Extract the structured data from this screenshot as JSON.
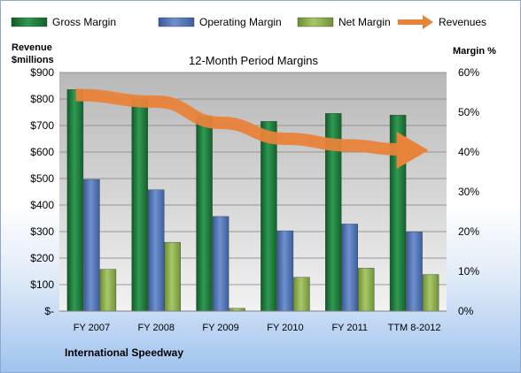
{
  "chart_data": {
    "type": "bar",
    "title": "12-Month Period Margins",
    "categories": [
      "FY 2007",
      "FY 2008",
      "FY 2009",
      "FY 2010",
      "FY 2011",
      "TTM 8-2012"
    ],
    "series": [
      {
        "name": "Gross Margin",
        "axis": "right",
        "values": [
          55.7,
          53.3,
          49.0,
          47.7,
          49.7,
          49.3
        ],
        "color": "#1e7a3c"
      },
      {
        "name": "Operating Margin",
        "axis": "right",
        "values": [
          33.1,
          30.5,
          23.8,
          20.2,
          21.9,
          19.9
        ],
        "color": "#4f72b8"
      },
      {
        "name": "Net Margin",
        "axis": "right",
        "values": [
          10.5,
          17.3,
          0.7,
          8.5,
          10.8,
          9.2
        ],
        "color": "#8fb04a"
      },
      {
        "name": "Revenues",
        "type": "line",
        "axis": "left",
        "values": [
          815,
          790,
          710,
          650,
          625,
          610
        ],
        "color": "#e8833a"
      }
    ],
    "y_left": {
      "label_line1": "Revenue",
      "label_line2": "$millions",
      "min": 0,
      "max": 900,
      "ticks": [
        "$-",
        "$100",
        "$200",
        "$300",
        "$400",
        "$500",
        "$600",
        "$700",
        "$800",
        "$900"
      ]
    },
    "y_right": {
      "label": "Margin %",
      "min": 0,
      "max": 60,
      "ticks": [
        "0%",
        "10%",
        "20%",
        "30%",
        "40%",
        "50%",
        "60%"
      ]
    },
    "legend_position": "top",
    "grid": true,
    "footer": "International Speedway"
  }
}
